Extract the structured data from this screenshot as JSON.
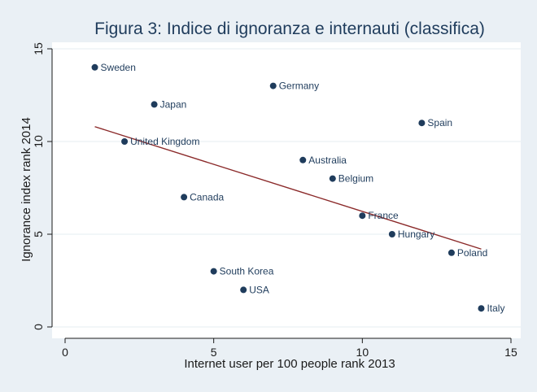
{
  "chart_data": {
    "type": "scatter",
    "title": "Figura 3: Indice di ignoranza e internauti (classifica)",
    "xlabel": "Internet user per 100 people rank 2013",
    "ylabel": "Ignorance index rank 2014",
    "xlim": [
      0,
      15
    ],
    "ylim": [
      0,
      15
    ],
    "xticks": [
      0,
      5,
      10,
      15
    ],
    "yticks": [
      0,
      5,
      10,
      15
    ],
    "grid": "horizontal",
    "legend": "none",
    "colors": {
      "outer_background": "#eaf0f5",
      "plot_background": "#ffffff",
      "marker": "#1f3c5c",
      "fit_line": "#8b2a2a",
      "grid": "#e6ecf1",
      "axis": "#1a1a1a"
    },
    "points": [
      {
        "label": "Sweden",
        "x": 1,
        "y": 14
      },
      {
        "label": "United Kingdom",
        "x": 2,
        "y": 10
      },
      {
        "label": "Japan",
        "x": 3,
        "y": 12
      },
      {
        "label": "Canada",
        "x": 4,
        "y": 7
      },
      {
        "label": "South Korea",
        "x": 5,
        "y": 3
      },
      {
        "label": "USA",
        "x": 6,
        "y": 2
      },
      {
        "label": "Germany",
        "x": 7,
        "y": 13
      },
      {
        "label": "Australia",
        "x": 8,
        "y": 9
      },
      {
        "label": "Belgium",
        "x": 9,
        "y": 8
      },
      {
        "label": "France",
        "x": 10,
        "y": 6
      },
      {
        "label": "Hungary",
        "x": 11,
        "y": 5
      },
      {
        "label": "Spain",
        "x": 12,
        "y": 11
      },
      {
        "label": "Poland",
        "x": 13,
        "y": 4
      },
      {
        "label": "Italy",
        "x": 14,
        "y": 1
      }
    ],
    "fit_line": {
      "type": "linear",
      "x": [
        1,
        14
      ],
      "y": [
        10.8,
        4.2
      ]
    }
  }
}
